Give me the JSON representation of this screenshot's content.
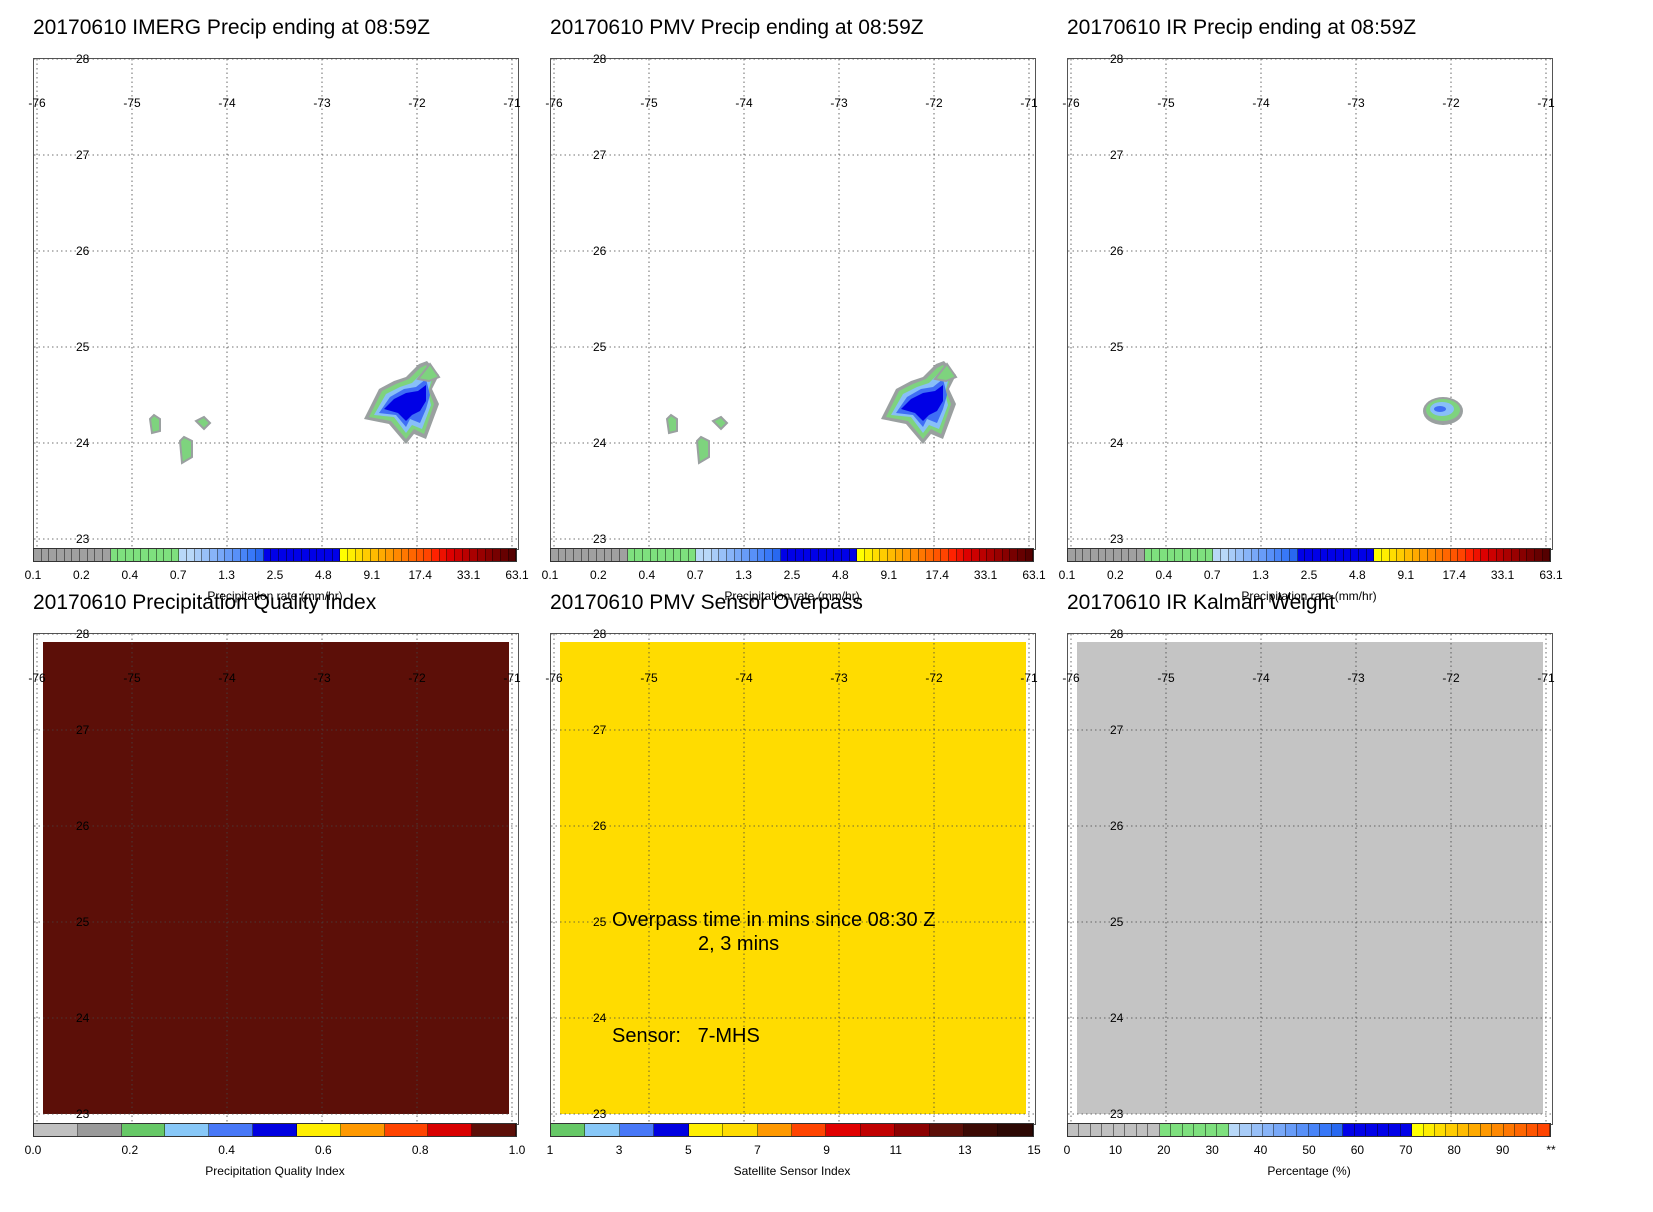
{
  "panels": [
    {
      "id": "imerg",
      "title": "20170610 IMERG Precip ending at 08:59Z",
      "fill": "#ffffff",
      "colorbar": {
        "label": "Precipitation rate (mm/hr)",
        "ticks": [
          "0.1",
          "0.2",
          "0.4",
          "0.7",
          "1.3",
          "2.5",
          "4.8",
          "9.1",
          "17.4",
          "33.1",
          "63.1"
        ]
      },
      "features": "precip_full"
    },
    {
      "id": "pmv",
      "title": "20170610 PMV Precip ending at 08:59Z",
      "fill": "#ffffff",
      "colorbar": {
        "label": "Precipitation rate (mm/hr)",
        "ticks": [
          "0.1",
          "0.2",
          "0.4",
          "0.7",
          "1.3",
          "2.5",
          "4.8",
          "9.1",
          "17.4",
          "33.1",
          "63.1"
        ]
      },
      "features": "precip_full"
    },
    {
      "id": "ir",
      "title": "20170610 IR Precip ending at 08:59Z",
      "fill": "#ffffff",
      "colorbar": {
        "label": "Precipitation rate (mm/hr)",
        "ticks": [
          "0.1",
          "0.2",
          "0.4",
          "0.7",
          "1.3",
          "2.5",
          "4.8",
          "9.1",
          "17.4",
          "33.1",
          "63.1"
        ]
      },
      "features": "precip_small"
    },
    {
      "id": "pqi",
      "title": "20170610 Precipitation Quality Index",
      "fill": "#5c0f08",
      "colorbar": {
        "label": "Precipitation Quality Index",
        "ticks": [
          "0.0",
          "0.2",
          "0.4",
          "0.6",
          "0.8",
          "1.0"
        ]
      },
      "features": "none"
    },
    {
      "id": "overpass",
      "title": "20170610 PMV Sensor Overpass",
      "fill": "#ffdc00",
      "colorbar": {
        "label": "Satellite Sensor Index",
        "ticks": [
          "1",
          "3",
          "5",
          "7",
          "9",
          "11",
          "13",
          "15"
        ]
      },
      "features": "none",
      "overpass_text": "Overpass time in mins since 08:30 Z",
      "overpass_mins": "2, 3 mins",
      "sensor_text": "Sensor:   7-MHS"
    },
    {
      "id": "kalman",
      "title": "20170610 IR Kalman Weight",
      "fill": "#c4c4c4",
      "colorbar": {
        "label": "Percentage (%)",
        "ticks": [
          "0",
          "10",
          "20",
          "30",
          "40",
          "50",
          "60",
          "70",
          "80",
          "90",
          "**"
        ]
      },
      "features": "none"
    }
  ],
  "map": {
    "lon_ticks": [
      "-76",
      "-75",
      "-74",
      "-73",
      "-72",
      "-71"
    ],
    "lat_ticks": [
      "28",
      "27",
      "26",
      "25",
      "24",
      "23"
    ]
  },
  "colors": {
    "precip_scale": [
      "#a0a0a0",
      "#a0a0a0",
      "#a0a0a0",
      "#a0a0a0",
      "#a0a0a0",
      "#a0a0a0",
      "#a0a0a0",
      "#a0a0a0",
      "#a0a0a0",
      "#a0a0a0",
      "#7ee07e",
      "#7ee07e",
      "#7ee07e",
      "#7ee07e",
      "#7ee07e",
      "#7ee07e",
      "#7ee07e",
      "#7ee07e",
      "#7ee07e",
      "#b8d8f8",
      "#b8d8f8",
      "#a8ccf8",
      "#98c0f8",
      "#88b4f8",
      "#78a8f8",
      "#689cf8",
      "#5890f8",
      "#4884f8",
      "#3878f8",
      "#2868f0",
      "#0000e8",
      "#0000e8",
      "#0000e8",
      "#0000e8",
      "#0000e8",
      "#0000e8",
      "#0000e8",
      "#0000e8",
      "#0000e8",
      "#0000e8",
      "#ffff00",
      "#ffee00",
      "#ffdd00",
      "#ffcc00",
      "#ffbb00",
      "#ffaa00",
      "#ff9900",
      "#ff8800",
      "#ff7700",
      "#ff6600",
      "#ff5500",
      "#ff4400",
      "#ff2200",
      "#ee1100",
      "#dd0000",
      "#cc0000",
      "#bb0000",
      "#aa0000",
      "#990000",
      "#880000",
      "#770000",
      "#660000",
      "#550000"
    ],
    "pqi_scale": [
      "#c0c0c0",
      "#9a9a9a",
      "#66c866",
      "#88c8f8",
      "#4878f8",
      "#0000e0",
      "#ffee00",
      "#ff9900",
      "#ff4400",
      "#d80000",
      "#5c0f08"
    ],
    "sensor_scale": [
      "#66c866",
      "#88c8f8",
      "#4878f8",
      "#0000e0",
      "#ffee00",
      "#ffdc00",
      "#ff9900",
      "#ff4400",
      "#e00000",
      "#c00000",
      "#8b0000",
      "#5c0f08",
      "#3c0a04",
      "#2c0804"
    ],
    "kalman_scale": [
      "#c0c0c0",
      "#c0c0c0",
      "#c0c0c0",
      "#c0c0c0",
      "#c0c0c0",
      "#c0c0c0",
      "#c0c0c0",
      "#c0c0c0",
      "#7ee07e",
      "#7ee07e",
      "#7ee07e",
      "#7ee07e",
      "#7ee07e",
      "#7ee07e",
      "#b8d8f8",
      "#a8ccf8",
      "#98c0f8",
      "#88b4f8",
      "#78a8f8",
      "#689cf8",
      "#5890f8",
      "#4884f8",
      "#3878f8",
      "#2868f0",
      "#0000e8",
      "#0000e8",
      "#0000e8",
      "#0000e8",
      "#0000e8",
      "#0000e8",
      "#ffff00",
      "#ffee00",
      "#ffdd00",
      "#ffcc00",
      "#ffbb00",
      "#ffaa00",
      "#ff9900",
      "#ff8800",
      "#ff7700",
      "#ff6600",
      "#ff5500",
      "#ff4400"
    ],
    "blob_outer": "#9aa0a0",
    "blob_green": "#7ed37e",
    "blob_light": "#88bff8",
    "blob_mid": "#3f6ef5",
    "blob_dark": "#0000e6"
  }
}
